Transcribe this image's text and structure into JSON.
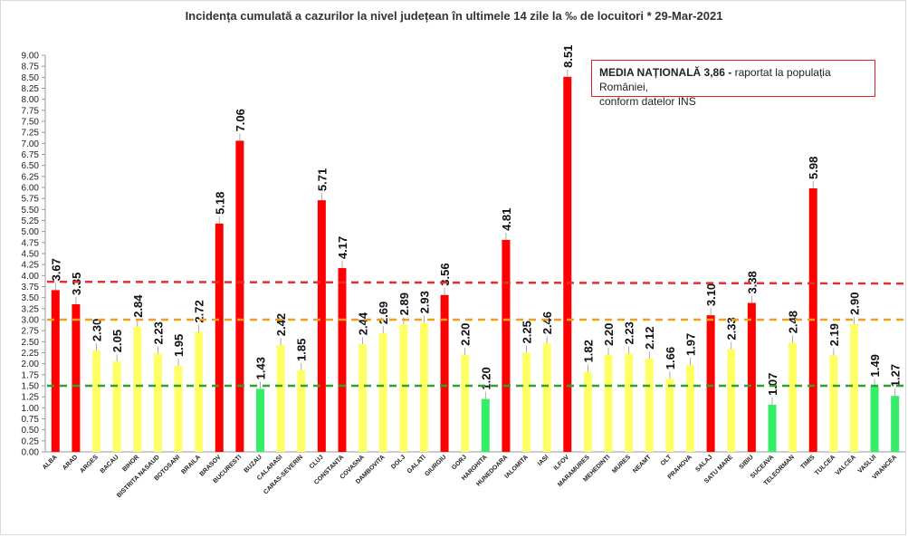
{
  "title": "Incidența cumulată a cazurilor la nivel județean în ultimele 14 zile la ‰ de locuitori * 29-Mar-2021",
  "annotation": {
    "bold": "MEDIA NAȚIONALĂ  3,86 -",
    "line1_rest": " raportat la populația României,",
    "line2": "conform datelor INS"
  },
  "colors": {
    "red": "#ff0000",
    "yellow": "#ffff66",
    "green": "#33ee66",
    "line_red": "#e03030",
    "line_orange": "#f0a020",
    "line_green": "#30a030"
  },
  "chart_data": {
    "type": "bar",
    "title": "Incidența cumulată a cazurilor la nivel județean în ultimele 14 zile la ‰ de locuitori * 29-Mar-2021",
    "xlabel": "",
    "ylabel": "",
    "ylim": [
      0,
      9
    ],
    "ytick_step": 0.25,
    "grid": false,
    "categories": [
      "ALBA",
      "ARAD",
      "ARGES",
      "BACAU",
      "BIHOR",
      "BISTRITA NASAUD",
      "BOTOSANI",
      "BRAILA",
      "BRASOV",
      "BUCURESTI",
      "BUZAU",
      "CALARASI",
      "CARAS-SEVERIN",
      "CLUJ",
      "CONSTANTA",
      "COVASNA",
      "DAMBOVITA",
      "DOLJ",
      "GALATI",
      "GIURGIU",
      "GORJ",
      "HARGHITA",
      "HUNEDOARA",
      "IALOMITA",
      "IASI",
      "ILFOV",
      "MARAMURES",
      "MEHEDINTI",
      "MURES",
      "NEAMT",
      "OLT",
      "PRAHOVA",
      "SALAJ",
      "SATU MARE",
      "SIBIU",
      "SUCEAVA",
      "TELEORMAN",
      "TIMIS",
      "TULCEA",
      "VALCEA",
      "VASLUI",
      "VRANCEA"
    ],
    "values": [
      3.67,
      3.35,
      2.3,
      2.05,
      2.84,
      2.23,
      1.95,
      2.72,
      5.18,
      7.06,
      1.43,
      2.42,
      1.85,
      5.71,
      4.17,
      2.44,
      2.69,
      2.89,
      2.93,
      3.56,
      2.2,
      1.2,
      4.81,
      2.25,
      2.46,
      8.51,
      1.82,
      2.2,
      2.23,
      2.12,
      1.66,
      1.97,
      3.1,
      2.33,
      3.38,
      1.07,
      2.48,
      5.98,
      2.19,
      2.9,
      1.49,
      1.27
    ],
    "bar_colors": [
      "red",
      "red",
      "yellow",
      "yellow",
      "yellow",
      "yellow",
      "yellow",
      "yellow",
      "red",
      "red",
      "green",
      "yellow",
      "yellow",
      "red",
      "red",
      "yellow",
      "yellow",
      "yellow",
      "yellow",
      "red",
      "yellow",
      "green",
      "red",
      "yellow",
      "yellow",
      "red",
      "yellow",
      "yellow",
      "yellow",
      "yellow",
      "yellow",
      "yellow",
      "red",
      "yellow",
      "red",
      "green",
      "yellow",
      "red",
      "yellow",
      "yellow",
      "green",
      "green"
    ],
    "reference_lines": [
      {
        "value": 3.86,
        "color": "line_red",
        "slope_to": 3.82
      },
      {
        "value": 3.0,
        "color": "line_orange"
      },
      {
        "value": 1.5,
        "color": "line_green"
      }
    ]
  }
}
